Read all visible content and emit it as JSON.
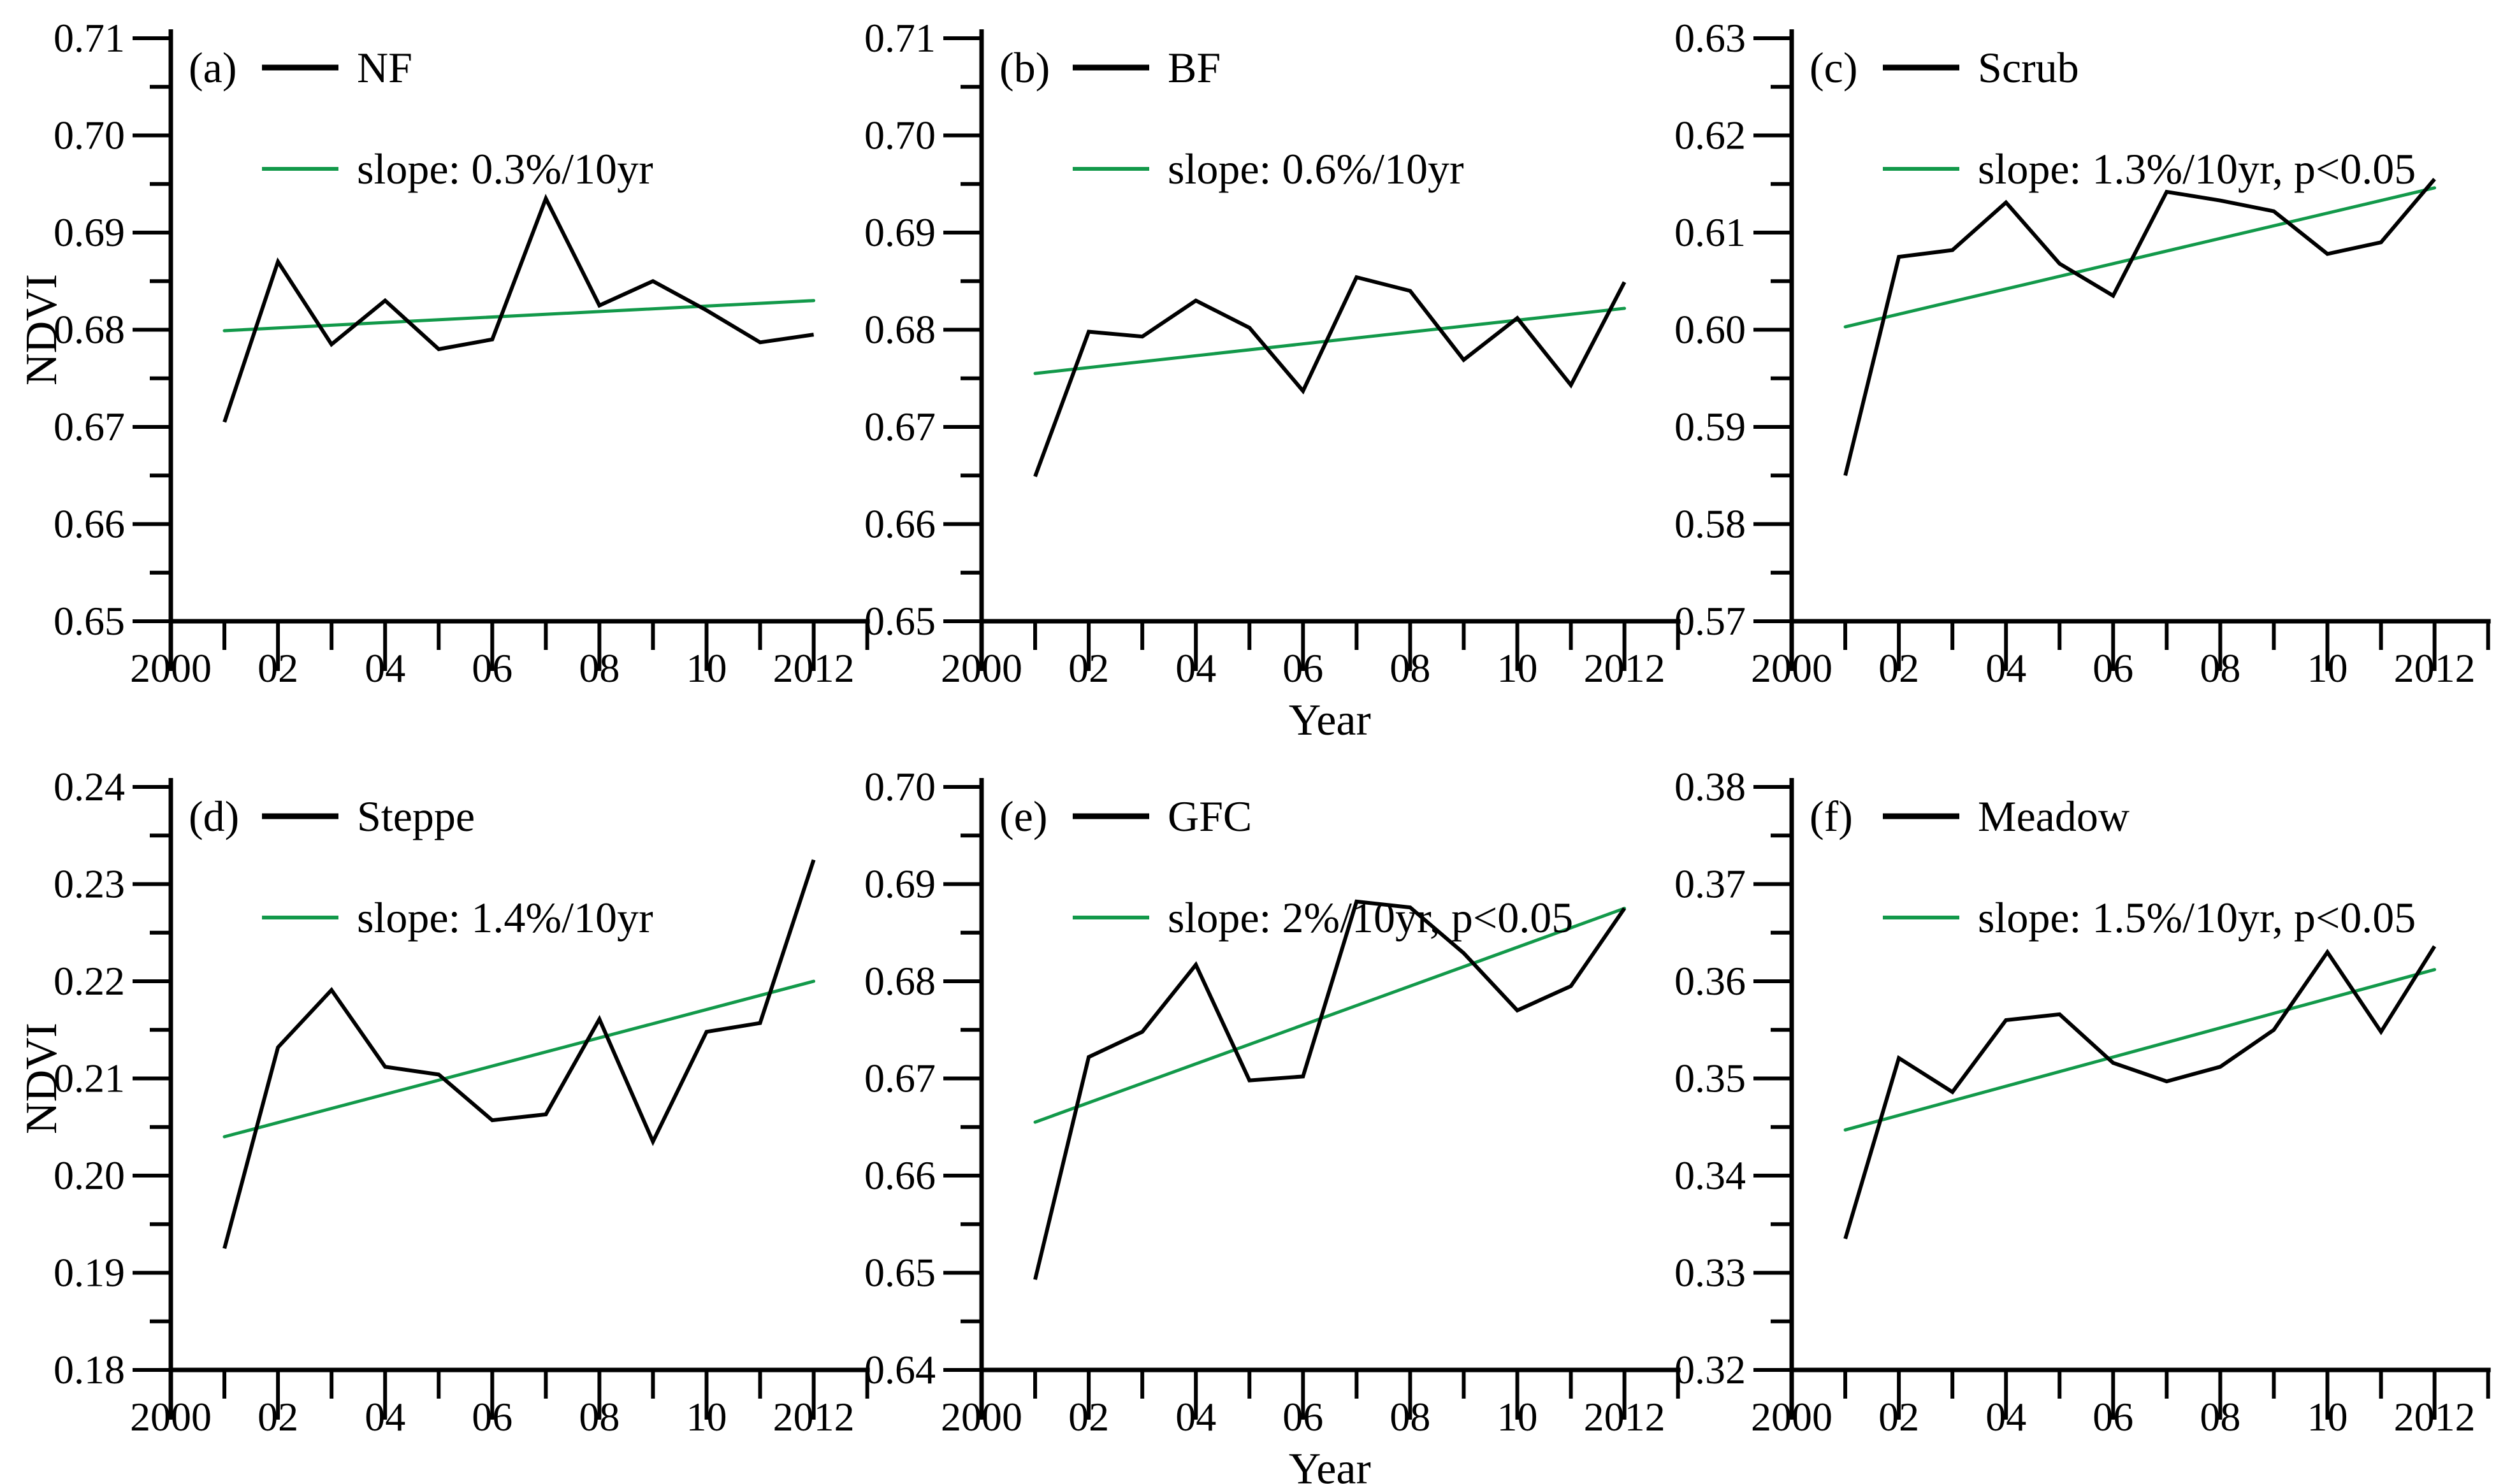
{
  "figure": {
    "ylabel": "NDVI",
    "xlabel": "Year",
    "colors": {
      "series": "#000000",
      "trend": "#12994a",
      "axis": "#000000"
    },
    "x_axis": {
      "range": [
        2000,
        2013
      ],
      "major_ticks": [
        2002,
        2004,
        2006,
        2008,
        2010,
        2012
      ],
      "minor_ticks": [
        2001,
        2003,
        2005,
        2007,
        2009,
        2011,
        2013
      ],
      "labels": [
        {
          "year": 2000,
          "text": "2000"
        },
        {
          "year": 2002,
          "text": "02"
        },
        {
          "year": 2004,
          "text": "04"
        },
        {
          "year": 2006,
          "text": "06"
        },
        {
          "year": 2008,
          "text": "08"
        },
        {
          "year": 2010,
          "text": "10"
        },
        {
          "year": 2012,
          "text": "2012"
        }
      ]
    }
  },
  "chart_data": [
    {
      "type": "line",
      "panel_letter": "(a)",
      "series_label": "NF",
      "trend_label": "slope: 0.3%/10yr",
      "x": [
        2001,
        2002,
        2003,
        2004,
        2005,
        2006,
        2007,
        2008,
        2009,
        2010,
        2011,
        2012
      ],
      "values": [
        0.6705,
        0.687,
        0.6785,
        0.683,
        0.678,
        0.679,
        0.6935,
        0.6825,
        0.685,
        0.682,
        0.6787,
        0.6795
      ],
      "trend": {
        "x0": 2001,
        "y0": 0.6799,
        "x1": 2012,
        "y1": 0.683
      },
      "ylim": [
        0.65,
        0.71
      ],
      "ytick_step": 0.01,
      "yticks": [
        "0.71",
        "0.70",
        "0.69",
        "0.68",
        "0.67",
        "0.66",
        "0.65"
      ],
      "show_ylabel": true,
      "show_xlabel": false
    },
    {
      "type": "line",
      "panel_letter": "(b)",
      "series_label": "BF",
      "trend_label": "slope: 0.6%/10yr",
      "x": [
        2001,
        2002,
        2003,
        2004,
        2005,
        2006,
        2007,
        2008,
        2009,
        2010,
        2011,
        2012
      ],
      "values": [
        0.6649,
        0.6798,
        0.6793,
        0.683,
        0.6802,
        0.6737,
        0.6854,
        0.684,
        0.6769,
        0.6812,
        0.6743,
        0.6849
      ],
      "trend": {
        "x0": 2001,
        "y0": 0.6755,
        "x1": 2012,
        "y1": 0.6822
      },
      "ylim": [
        0.65,
        0.71
      ],
      "ytick_step": 0.01,
      "yticks": [
        "0.71",
        "0.70",
        "0.69",
        "0.68",
        "0.67",
        "0.66",
        "0.65"
      ],
      "show_ylabel": false,
      "show_xlabel": true
    },
    {
      "type": "line",
      "panel_letter": "(c)",
      "series_label": "Scrub",
      "trend_label": "slope: 1.3%/10yr, p<0.05",
      "x": [
        2001,
        2002,
        2003,
        2004,
        2005,
        2006,
        2007,
        2008,
        2009,
        2010,
        2011,
        2012
      ],
      "values": [
        0.585,
        0.6075,
        0.6082,
        0.6131,
        0.6068,
        0.6035,
        0.6142,
        0.6133,
        0.6122,
        0.6078,
        0.609,
        0.6155
      ],
      "trend": {
        "x0": 2001,
        "y0": 0.6003,
        "x1": 2012,
        "y1": 0.6146
      },
      "ylim": [
        0.57,
        0.63
      ],
      "ytick_step": 0.01,
      "yticks": [
        "0.63",
        "0.62",
        "0.61",
        "0.60",
        "0.59",
        "0.58",
        "0.57"
      ],
      "show_ylabel": false,
      "show_xlabel": false
    },
    {
      "type": "line",
      "panel_letter": "(d)",
      "series_label": "Steppe",
      "trend_label": "slope: 1.4%/10yr",
      "x": [
        2001,
        2002,
        2003,
        2004,
        2005,
        2006,
        2007,
        2008,
        2009,
        2010,
        2011,
        2012
      ],
      "values": [
        0.1925,
        0.2132,
        0.2191,
        0.2112,
        0.2104,
        0.2057,
        0.2063,
        0.2161,
        0.2035,
        0.2148,
        0.2157,
        0.2325
      ],
      "trend": {
        "x0": 2001,
        "y0": 0.204,
        "x1": 2012,
        "y1": 0.22
      },
      "ylim": [
        0.18,
        0.24
      ],
      "ytick_step": 0.01,
      "yticks": [
        "0.24",
        "0.23",
        "0.22",
        "0.21",
        "0.20",
        "0.19",
        "0.18"
      ],
      "show_ylabel": true,
      "show_xlabel": false
    },
    {
      "type": "line",
      "panel_letter": "(e)",
      "series_label": "GFC",
      "trend_label": "slope: 2%/10yr, p<0.05",
      "x": [
        2001,
        2002,
        2003,
        2004,
        2005,
        2006,
        2007,
        2008,
        2009,
        2010,
        2011,
        2012
      ],
      "values": [
        0.6493,
        0.6722,
        0.6748,
        0.6817,
        0.6698,
        0.6702,
        0.6882,
        0.6876,
        0.6829,
        0.677,
        0.6795,
        0.6875
      ],
      "trend": {
        "x0": 2001,
        "y0": 0.6655,
        "x1": 2012,
        "y1": 0.6875
      },
      "ylim": [
        0.64,
        0.7
      ],
      "ytick_step": 0.01,
      "yticks": [
        "0.70",
        "0.69",
        "0.68",
        "0.67",
        "0.66",
        "0.65",
        "0.64"
      ],
      "show_ylabel": false,
      "show_xlabel": true
    },
    {
      "type": "line",
      "panel_letter": "(f)",
      "series_label": "Meadow",
      "trend_label": "slope: 1.5%/10yr, p<0.05",
      "x": [
        2001,
        2002,
        2003,
        2004,
        2005,
        2006,
        2007,
        2008,
        2009,
        2010,
        2011,
        2012
      ],
      "values": [
        0.3335,
        0.3521,
        0.3486,
        0.356,
        0.3566,
        0.3516,
        0.3497,
        0.3512,
        0.355,
        0.363,
        0.3548,
        0.3636
      ],
      "trend": {
        "x0": 2001,
        "y0": 0.3447,
        "x1": 2012,
        "y1": 0.3612
      },
      "ylim": [
        0.32,
        0.38
      ],
      "ytick_step": 0.01,
      "yticks": [
        "0.38",
        "0.37",
        "0.36",
        "0.35",
        "0.34",
        "0.33",
        "0.32"
      ],
      "show_ylabel": false,
      "show_xlabel": false
    }
  ]
}
